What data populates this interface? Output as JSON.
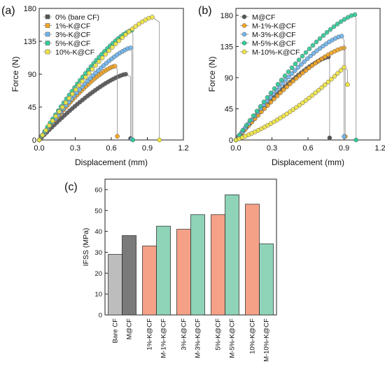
{
  "chart_data": [
    {
      "panel_label": "(a)",
      "type": "line",
      "xlabel": "Displacement (mm)",
      "ylabel": "Force (N)",
      "xlim": [
        0,
        1.2
      ],
      "ylim": [
        0,
        180
      ],
      "xticks": [
        0.0,
        0.3,
        0.6,
        0.9,
        1.2
      ],
      "yticks": [
        0,
        45,
        90,
        135,
        180
      ],
      "legend_position": "top-left",
      "series": [
        {
          "name": "0% (bare CF)",
          "color": "#555555",
          "peak": [
            0.72,
            90
          ],
          "drop_x": 0.76,
          "end_y": 2
        },
        {
          "name": "1%-K@CF",
          "color": "#f5a623",
          "peak": [
            0.63,
            101
          ],
          "drop_x": 0.65,
          "end_y": 5
        },
        {
          "name": "3%-K@CF",
          "color": "#6fb6f0",
          "peak": [
            0.76,
            126
          ],
          "drop_x": 0.77,
          "end_y": 1
        },
        {
          "name": "5%-K@CF",
          "color": "#2ecc9a",
          "peak": [
            0.77,
            150
          ],
          "drop_x": 0.78,
          "end_y": 0
        },
        {
          "name": "10%-K@CF",
          "color": "#f2e640",
          "peak": [
            0.94,
            168
          ],
          "drop_x": 1.0,
          "end_y": 0
        }
      ]
    },
    {
      "panel_label": "(b)",
      "type": "line",
      "xlabel": "Displacement (mm)",
      "ylabel": "Force (N)",
      "xlim": [
        0,
        1.2
      ],
      "ylim": [
        0,
        190
      ],
      "xticks": [
        0.0,
        0.3,
        0.6,
        0.9,
        1.2
      ],
      "yticks": [
        0,
        45,
        90,
        135,
        180
      ],
      "legend_position": "top-left",
      "series": [
        {
          "name": "M@CF",
          "color": "#555555",
          "peak": [
            0.77,
            120
          ],
          "drop_x": 0.78,
          "end_y": 3
        },
        {
          "name": "M-1%-K@CF",
          "color": "#f5a623",
          "peak": [
            0.9,
            133
          ],
          "drop_x": 0.91,
          "end_y": 5
        },
        {
          "name": "M-3%-K@CF",
          "color": "#6fb6f0",
          "peak": [
            0.88,
            150
          ],
          "drop_x": 0.9,
          "end_y": 5
        },
        {
          "name": "M-5%-K@CF",
          "color": "#2ecc9a",
          "peak": [
            0.99,
            181
          ],
          "drop_x": 1.0,
          "end_y": 0
        },
        {
          "name": "M-10%-K@CF",
          "color": "#f2e640",
          "peak": [
            0.9,
            105
          ],
          "drop_x": 0.93,
          "end_y": 80
        }
      ]
    },
    {
      "panel_label": "(c)",
      "type": "bar",
      "ylabel": "IFSS (MPa)",
      "ylim": [
        0,
        65
      ],
      "yticks": [
        0,
        10,
        20,
        30,
        40,
        50,
        60
      ],
      "categories": [
        "Bare CF",
        "M@CF",
        "1%-K@CF",
        "M-1%-K@CF",
        "3%-K@CF",
        "M-3%-K@CF",
        "5%-K@CF",
        "M-5%-K@CF",
        "10%-K@CF",
        "M-10%-K@CF"
      ],
      "values": [
        29,
        38,
        33,
        42.5,
        41,
        48,
        48,
        57.5,
        53,
        34
      ],
      "colors": [
        "#bdbdbd",
        "#7a7a7a",
        "#f5a187",
        "#8fd3b8",
        "#f5a187",
        "#8fd3b8",
        "#f5a187",
        "#8fd3b8",
        "#f5a187",
        "#8fd3b8"
      ]
    }
  ]
}
